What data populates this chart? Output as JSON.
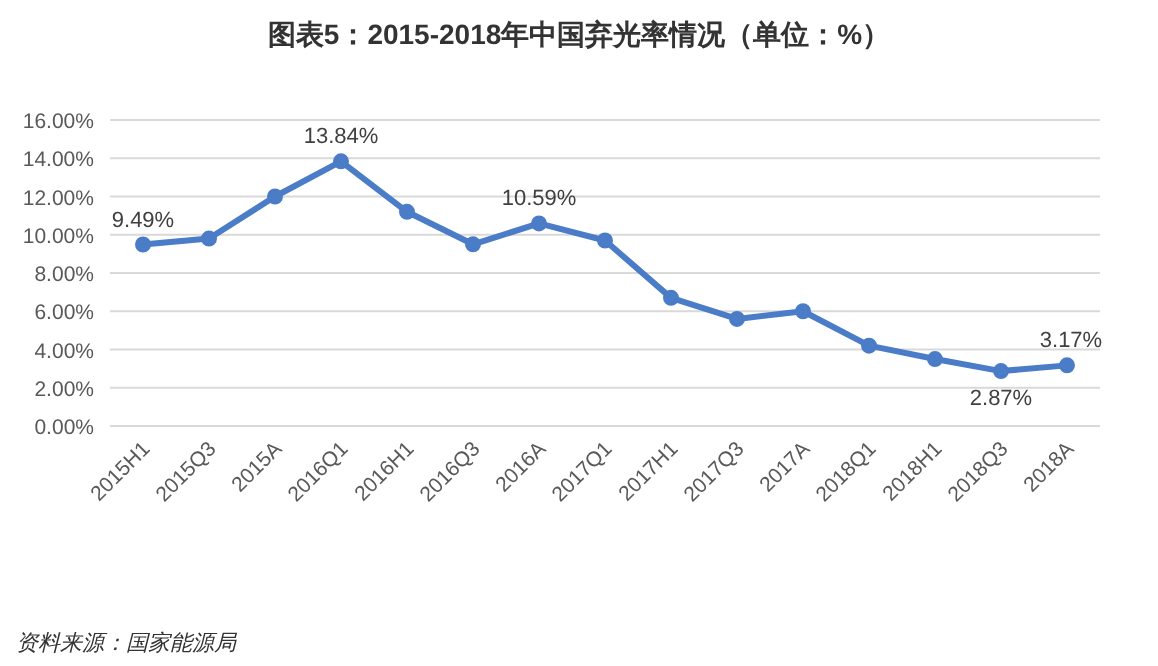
{
  "chart_data": {
    "type": "line",
    "title": "图表5：2015-2018年中国弃光率情况（单位：%）",
    "categories": [
      "2015H1",
      "2015Q3",
      "2015A",
      "2016Q1",
      "2016H1",
      "2016Q3",
      "2016A",
      "2017Q1",
      "2017H1",
      "2017Q3",
      "2017A",
      "2018Q1",
      "2018H1",
      "2018Q3",
      "2018A"
    ],
    "series": [
      {
        "color": "#4a7cc7",
        "values": [
          9.49,
          9.8,
          12.0,
          13.84,
          11.2,
          9.5,
          10.59,
          9.7,
          6.7,
          5.6,
          6.0,
          4.2,
          3.5,
          2.87,
          3.17
        ],
        "value_labels": [
          "9.49%",
          null,
          null,
          "13.84%",
          null,
          null,
          "10.59%",
          null,
          null,
          null,
          null,
          null,
          null,
          "2.87%",
          "3.17%"
        ]
      }
    ],
    "ylim": [
      0,
      16
    ],
    "yticks": [
      {
        "value": 0,
        "label": "0.00%"
      },
      {
        "value": 2,
        "label": "2.00%"
      },
      {
        "value": 4,
        "label": "4.00%"
      },
      {
        "value": 6,
        "label": "6.00%"
      },
      {
        "value": 8,
        "label": "8.00%"
      },
      {
        "value": 10,
        "label": "10.00%"
      },
      {
        "value": 12,
        "label": "12.00%"
      },
      {
        "value": 14,
        "label": "14.00%"
      },
      {
        "value": 16,
        "label": "16.00%"
      }
    ],
    "grid": "y",
    "marker": "circle",
    "line_style": "solid",
    "annotations": [
      "资料来源：国家能源局"
    ]
  }
}
